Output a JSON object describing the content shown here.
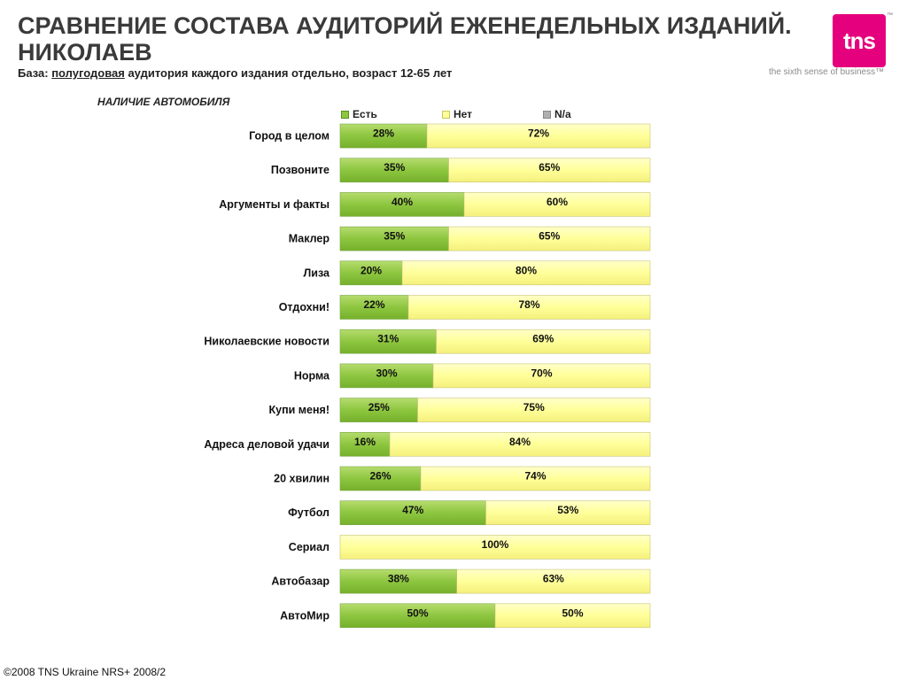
{
  "header": {
    "title": "СРАВНЕНИЕ СОСТАВА АУДИТОРИЙ ЕЖЕНЕДЕЛЬНЫХ ИЗДАНИЙ. НИКОЛАЕВ",
    "subtitle_prefix": "База: ",
    "subtitle_underlined": "полугодовая",
    "subtitle_rest": " аудитория каждого издания отдельно, возраст 12-65 лет"
  },
  "logo": {
    "text": "tns",
    "tm": "™",
    "tagline": "the sixth sense of business™"
  },
  "footer": "©2008 TNS Ukraine  NRS+ 2008/2",
  "colors": {
    "yes": "#8dc63f",
    "no": "#ffff99",
    "na": "#b0b0b0"
  },
  "chart_data": {
    "type": "bar",
    "title": "НАЛИЧИЕ АВТОМОБИЛЯ",
    "orientation": "horizontal",
    "stacked": true,
    "legend_position": "top",
    "xlim": [
      0,
      100
    ],
    "categories": [
      "Город в целом",
      "Позвоните",
      "Аргументы и факты",
      "Маклер",
      "Лиза",
      "Отдохни!",
      "Николаевские новости",
      "Норма",
      "Купи меня!",
      "Адреса деловой удачи",
      "20 хвилин",
      "Футбол",
      "Сериал",
      "Автобазар",
      "АвтоМир"
    ],
    "series": [
      {
        "name": "Есть",
        "values": [
          28,
          35,
          40,
          35,
          20,
          22,
          31,
          30,
          25,
          16,
          26,
          47,
          0,
          38,
          50
        ],
        "labels": [
          "28%",
          "35%",
          "40%",
          "35%",
          "20%",
          "22%",
          "31%",
          "30%",
          "25%",
          "16%",
          "26%",
          "47%",
          "",
          "38%",
          "50%"
        ]
      },
      {
        "name": "Нет",
        "values": [
          72,
          65,
          60,
          65,
          80,
          78,
          69,
          70,
          75,
          84,
          74,
          53,
          100,
          63,
          50
        ],
        "labels": [
          "72%",
          "65%",
          "60%",
          "65%",
          "80%",
          "78%",
          "69%",
          "70%",
          "75%",
          "84%",
          "74%",
          "53%",
          "100%",
          "63%",
          "50%"
        ]
      },
      {
        "name": "N/a",
        "values": [
          0,
          0,
          0,
          0,
          0,
          0,
          0,
          0,
          0,
          0,
          0,
          0,
          0,
          0,
          0
        ]
      }
    ]
  }
}
